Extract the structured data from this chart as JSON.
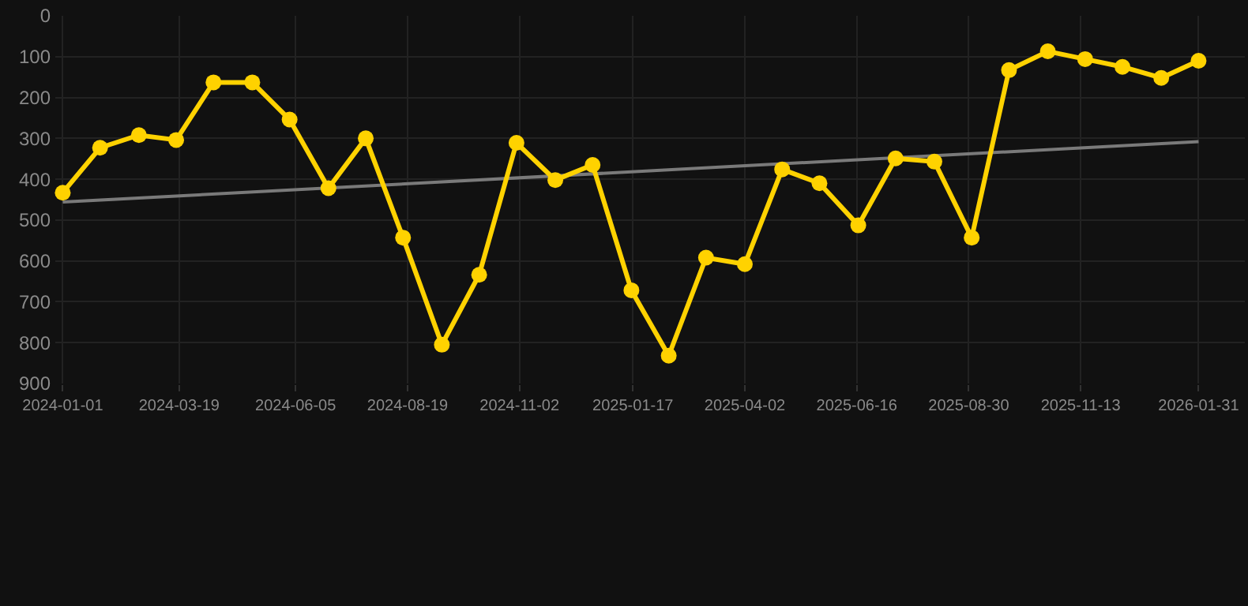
{
  "chart_data": {
    "type": "line",
    "x": [
      "2024-01-01",
      "2024-01-26",
      "2024-02-21",
      "2024-03-17",
      "2024-04-11",
      "2024-05-07",
      "2024-06-01",
      "2024-06-27",
      "2024-07-22",
      "2024-08-16",
      "2024-09-11",
      "2024-10-06",
      "2024-10-31",
      "2024-11-26",
      "2024-12-21",
      "2025-01-16",
      "2025-02-10",
      "2025-03-07",
      "2025-04-02",
      "2025-04-27",
      "2025-05-22",
      "2025-06-17",
      "2025-07-12",
      "2025-08-07",
      "2025-09-01",
      "2025-09-26",
      "2025-10-22",
      "2025-11-16",
      "2025-12-11",
      "2026-01-06",
      "2026-01-31"
    ],
    "series": [
      {
        "color": "#ffd200",
        "marker": "circle",
        "values": [
          433,
          323,
          292,
          304,
          163,
          163,
          254,
          422,
          300,
          543,
          805,
          634,
          311,
          402,
          365,
          672,
          832,
          592,
          608,
          376,
          410,
          513,
          349,
          357,
          543,
          133,
          87,
          106,
          125,
          152,
          110
        ]
      },
      {
        "type": "line",
        "color": "#7a7a7a",
        "marker": "none",
        "x": [
          "2024-01-01",
          "2026-01-31"
        ],
        "values": [
          456,
          308
        ]
      }
    ],
    "xlim": [
      "2023-12-27",
      "2026-03-03"
    ],
    "xticks": [
      "2024-01-01",
      "2024-03-19",
      "2024-06-05",
      "2024-08-19",
      "2024-11-02",
      "2025-01-17",
      "2025-04-02",
      "2025-06-16",
      "2025-08-30",
      "2025-11-13",
      "2026-01-31"
    ],
    "ylim": [
      900,
      0
    ],
    "yticks": [
      0,
      100,
      200,
      300,
      400,
      500,
      600,
      700,
      800,
      900
    ],
    "grid": true
  }
}
